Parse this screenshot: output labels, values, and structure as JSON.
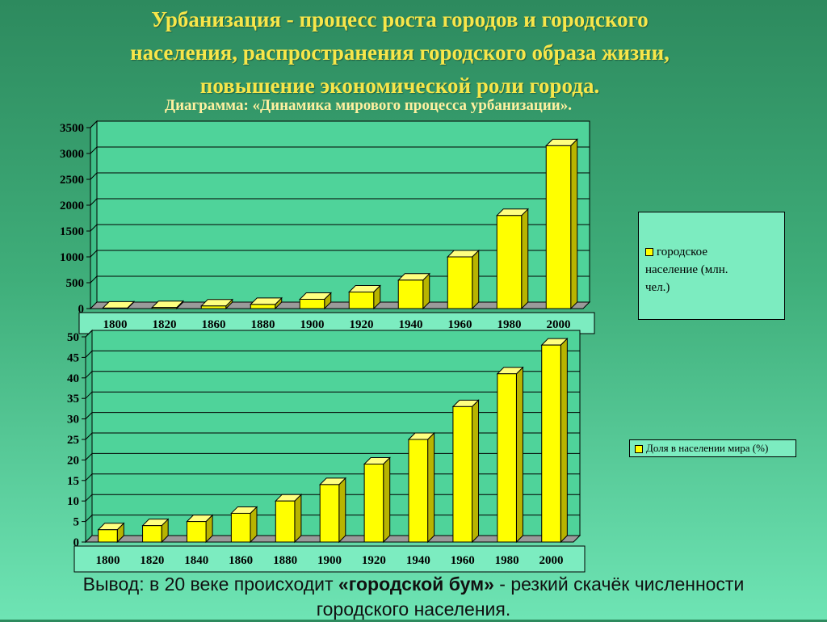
{
  "heading": {
    "line1": "Урбанизация - процесс роста городов и городского",
    "line2": "населения, распространения городского образа жизни,",
    "line3": "повышение экономической роли города."
  },
  "subtitle": "Диаграмма: «Динамика мирового процесса урбанизации».",
  "chart_data": [
    {
      "type": "bar",
      "categories": [
        "1800",
        "1820",
        "1860",
        "1880",
        "1900",
        "1920",
        "1940",
        "1960",
        "1980",
        "2000"
      ],
      "series": [
        {
          "name": "городское население (млн. чел.)",
          "values": [
            10,
            20,
            50,
            80,
            180,
            320,
            550,
            1000,
            1800,
            3150
          ]
        }
      ],
      "ylim": [
        0,
        3500
      ],
      "yticks": [
        0,
        500,
        1000,
        1500,
        2000,
        2500,
        3000,
        3500
      ],
      "grid": true,
      "legend": "right",
      "colors": {
        "bar": "#ffff00",
        "bar_top": "#ffff80",
        "bar_side": "#b8b400"
      }
    },
    {
      "type": "bar",
      "categories": [
        "1800",
        "1820",
        "1840",
        "1860",
        "1880",
        "1900",
        "1920",
        "1940",
        "1960",
        "1980",
        "2000"
      ],
      "series": [
        {
          "name": "Доля в населении мира (%)",
          "values": [
            3,
            4,
            5,
            7,
            10,
            14,
            19,
            25,
            33,
            41,
            48
          ]
        }
      ],
      "ylim": [
        0,
        50
      ],
      "yticks": [
        0,
        5,
        10,
        15,
        20,
        25,
        30,
        35,
        40,
        45,
        50
      ],
      "grid": true,
      "legend": "right",
      "colors": {
        "bar": "#ffff00",
        "bar_top": "#ffff80",
        "bar_side": "#b8b400"
      }
    }
  ],
  "legend1": {
    "line1": "городское",
    "line2": "население (млн.",
    "line3": "чел.)"
  },
  "conclusion": {
    "prefix": "Вывод: в 20 веке происходит ",
    "emphasis": "«городской бум»",
    "suffix": " - резкий скачёк численности",
    "line2": "городского населения."
  }
}
